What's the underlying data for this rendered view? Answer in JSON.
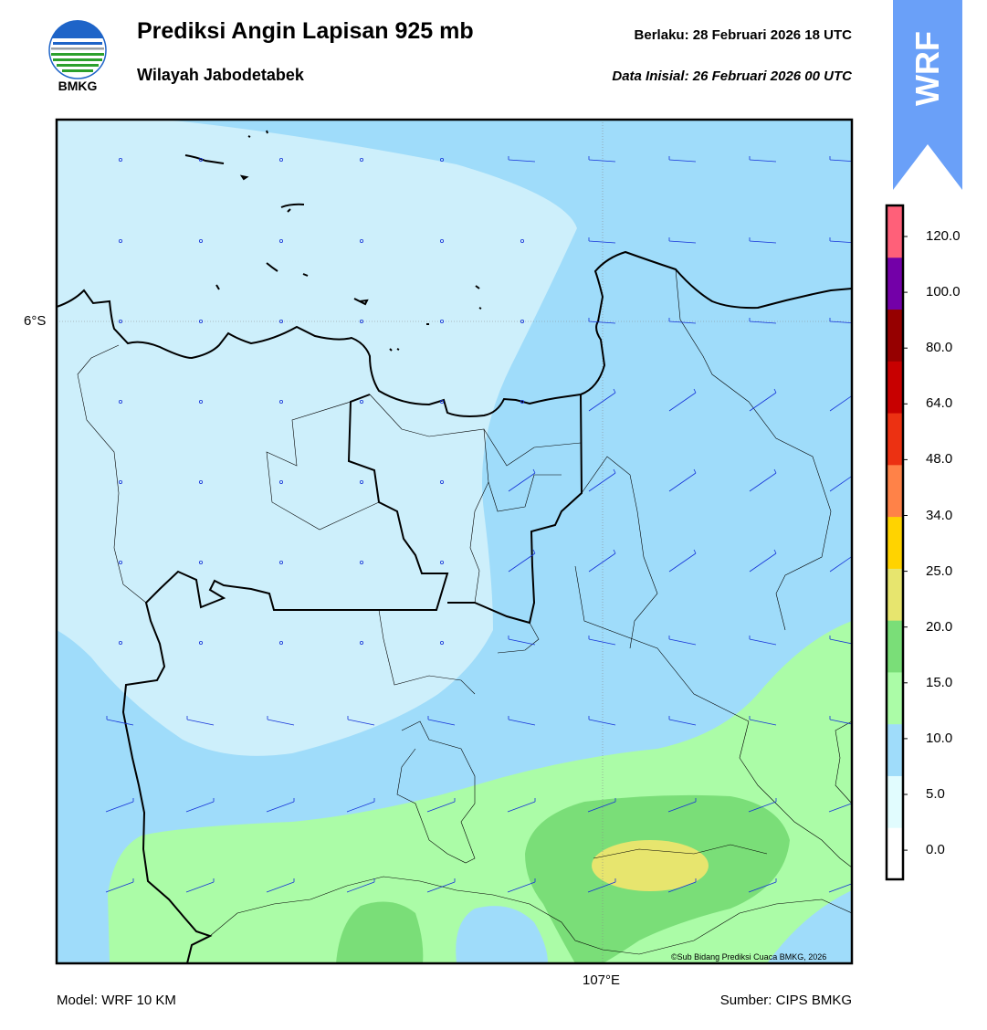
{
  "header": {
    "title": "Prediksi Angin Lapisan 925 mb",
    "subtitle": "Wilayah Jabodetabek",
    "valid": "Berlaku:  28 Februari 2026 18 UTC",
    "initial": "Data Inisial:  26 Februari 2026 00 UTC"
  },
  "logo": {
    "text": "BMKG"
  },
  "badge": {
    "text": "WRF",
    "color": "#6aa0f8"
  },
  "map": {
    "lat_label": "6°S",
    "lon_label": "107°E",
    "credit": "©Sub Bidang Prediksi Cuaca BMKG, 2026"
  },
  "colorbar": {
    "labels": [
      "120.0",
      "100.0",
      "80.0",
      "64.0",
      "48.0",
      "34.0",
      "25.0",
      "20.0",
      "15.0",
      "10.0",
      "5.0",
      "0.0"
    ],
    "colors": [
      "#ffffff",
      "#e1fcfe",
      "#9fdcfa",
      "#abfca7",
      "#7ade78",
      "#e7e56e",
      "#ffd300",
      "#ff8248",
      "#ec3112",
      "#c80000",
      "#960000",
      "#7300a8",
      "#ff6079"
    ]
  },
  "footer": {
    "model": "Model: WRF 10 KM",
    "source": "Sumber: CIPS BMKG"
  }
}
